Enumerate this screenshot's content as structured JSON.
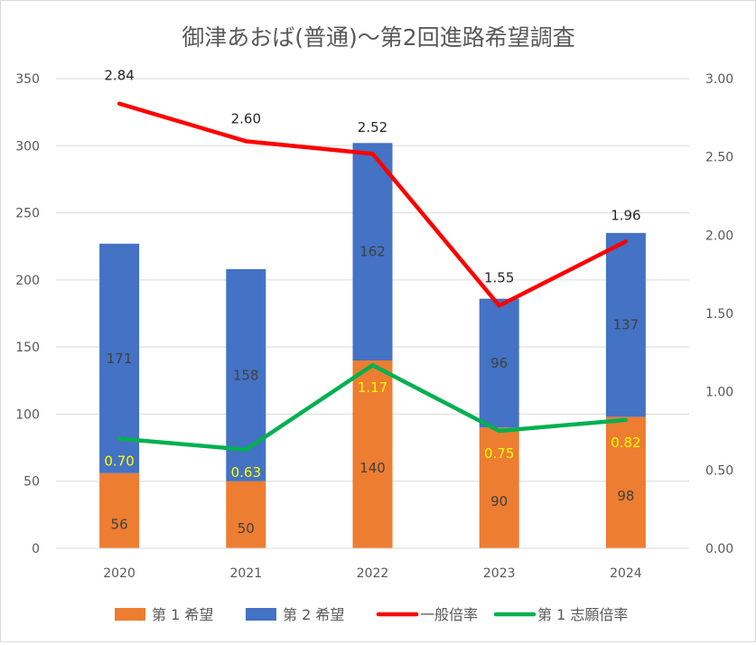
{
  "chart_data": {
    "type": "bar",
    "title": "御津あおば(普通)〜第2回進路希望調査",
    "categories": [
      "2020",
      "2021",
      "2022",
      "2023",
      "2024"
    ],
    "bar_series": [
      {
        "name": "第 1 希望",
        "values": [
          56,
          50,
          140,
          90,
          98
        ],
        "color": "#ED7D31"
      },
      {
        "name": "第 2 希望",
        "values": [
          171,
          158,
          162,
          96,
          137
        ],
        "color": "#4472C4"
      }
    ],
    "line_series": [
      {
        "name": "一般倍率",
        "values": [
          2.84,
          2.6,
          2.52,
          1.55,
          1.96
        ],
        "labels": [
          "2.84",
          "2.60",
          "2.52",
          "1.55",
          "1.96"
        ],
        "color": "#FF0000",
        "label_color": "#262626"
      },
      {
        "name": "第 1 志願倍率",
        "values": [
          0.7,
          0.63,
          1.17,
          0.75,
          0.82
        ],
        "labels": [
          "0.70",
          "0.63",
          "1.17",
          "0.75",
          "0.82"
        ],
        "color": "#00B050",
        "label_color": "#FFFF00"
      }
    ],
    "legend_order": [
      "第 1 希望",
      "第 2 希望",
      "一般倍率",
      "第 1 志願倍率"
    ],
    "y_left": {
      "min": 0,
      "max": 350,
      "ticks": [
        0,
        50,
        100,
        150,
        200,
        250,
        300,
        350
      ],
      "tick_labels": [
        "0",
        "50",
        "100",
        "150",
        "200",
        "250",
        "300",
        "350"
      ]
    },
    "y_right": {
      "min": 0,
      "max": 3.0,
      "ticks": [
        0,
        0.5,
        1.0,
        1.5,
        2.0,
        2.5,
        3.0
      ],
      "tick_labels": [
        "0.00",
        "0.50",
        "1.00",
        "1.50",
        "2.00",
        "2.50",
        "3.00"
      ]
    },
    "grid": true,
    "legend_position": "bottom"
  }
}
